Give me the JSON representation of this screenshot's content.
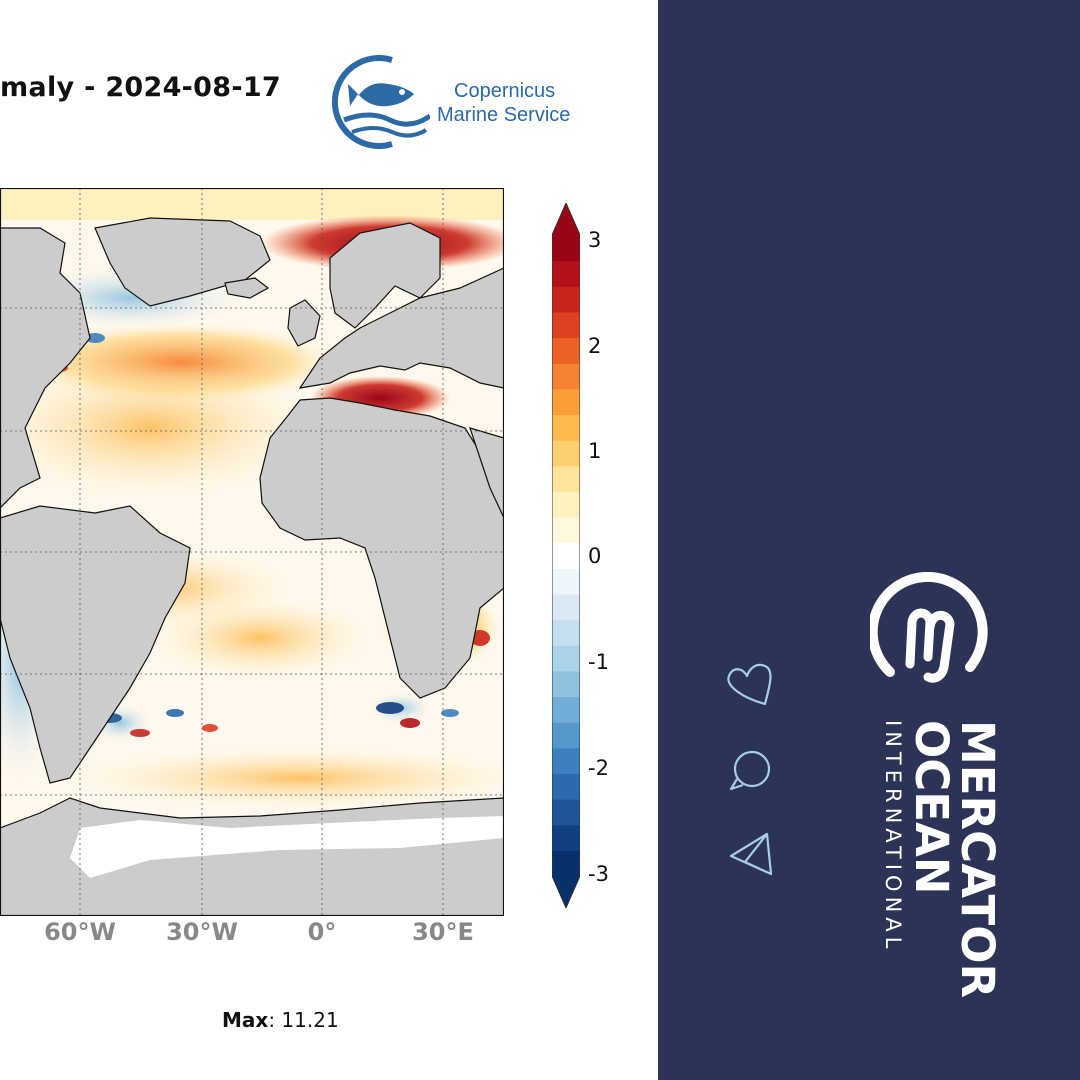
{
  "title": "maly - 2024-08-17",
  "copernicus": {
    "line1": "Copernicus",
    "line2": "Marine Service"
  },
  "map": {
    "longitude_ticks": [
      "60°W",
      "30°W",
      "0°",
      "30°E"
    ],
    "land_color": "#cccccc",
    "coastline_color": "#111111",
    "gridlines": true
  },
  "colorbar": {
    "ticks": [
      "3",
      "2",
      "1",
      "0",
      "-1",
      "-2",
      "-3"
    ],
    "min": -3,
    "max": 3,
    "colors": [
      "#08306b",
      "#123f80",
      "#1f5597",
      "#2a6aad",
      "#3d80bf",
      "#5598cb",
      "#6eaed7",
      "#8fc2df",
      "#aad2e8",
      "#c3dff0",
      "#dae9f5",
      "#eef5fb",
      "#ffffff",
      "#fff8df",
      "#fff0c0",
      "#fee39a",
      "#fdd06f",
      "#fcb94e",
      "#fb9e38",
      "#f58230",
      "#ec6126",
      "#dc4220",
      "#c8261d",
      "#b3111a",
      "#9a0417"
    ]
  },
  "max": {
    "label": "Max",
    "value": "11.21"
  },
  "brand": {
    "line1": "MERCATOR",
    "line2": "OCEAN",
    "line3": "INTERNATIONAL"
  },
  "icons": [
    "heart-icon",
    "comment-icon",
    "send-icon"
  ],
  "colors": {
    "panel": "#2b3357",
    "icon_outline": "#a8cde8",
    "copernicus_blue": "#2b6aa6"
  }
}
